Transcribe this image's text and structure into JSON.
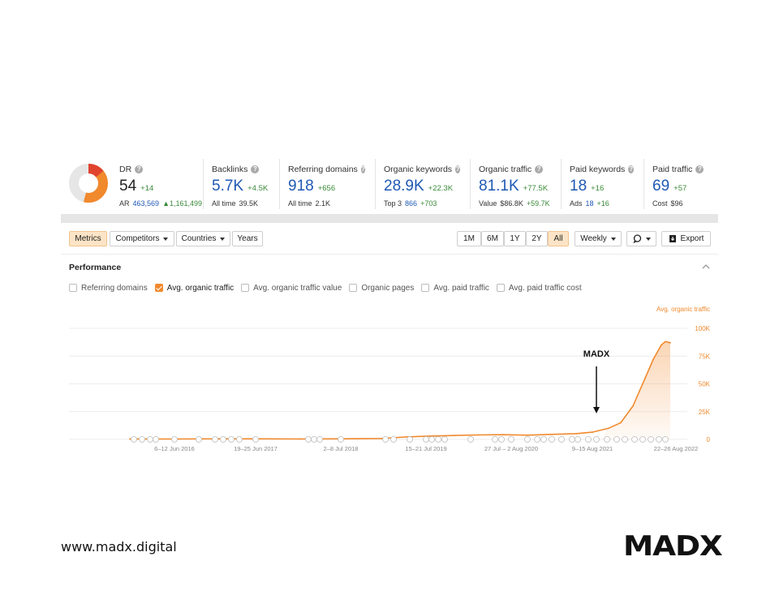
{
  "metrics": {
    "dr": {
      "label": "DR",
      "value": "54",
      "delta": "+14",
      "ar_label": "AR",
      "ar_value": "463,569",
      "ar_change": "▲1,161,499",
      "gauge_fraction": 0.54,
      "gauge_color": "#f1892d",
      "gauge_color_top": "#e0442f"
    },
    "backlinks": {
      "label": "Backlinks",
      "value": "5.7K",
      "delta": "+4.5K",
      "sub_label": "All time",
      "sub_value": "39.5K"
    },
    "referring_domains": {
      "label": "Referring domains",
      "value": "918",
      "delta": "+656",
      "sub_label": "All time",
      "sub_value": "2.1K"
    },
    "organic_keywords": {
      "label": "Organic keywords",
      "value": "28.9K",
      "delta": "+22.3K",
      "sub_label": "Top 3",
      "sub_value": "866",
      "sub_delta": "+703"
    },
    "organic_traffic": {
      "label": "Organic traffic",
      "value": "81.1K",
      "delta": "+77.5K",
      "sub_label": "Value",
      "sub_value": "$86.8K",
      "sub_delta": "+59.7K"
    },
    "paid_keywords": {
      "label": "Paid keywords",
      "value": "18",
      "delta": "+16",
      "sub_label": "Ads",
      "sub_value": "18",
      "sub_delta": "+16"
    },
    "paid_traffic": {
      "label": "Paid traffic",
      "value": "69",
      "delta": "+57",
      "sub_label": "Cost",
      "sub_value": "$96"
    }
  },
  "toolbar": {
    "tabs": [
      "Metrics",
      "Competitors",
      "Countries",
      "Years"
    ],
    "active_tab": "Metrics",
    "ranges": [
      "1M",
      "6M",
      "1Y",
      "2Y",
      "All"
    ],
    "active_range": "All",
    "interval": "Weekly",
    "comment_icon": "comment-icon",
    "export_label": "Export",
    "export_icon": "export-icon"
  },
  "performance": {
    "title": "Performance",
    "checkboxes": [
      {
        "label": "Referring domains",
        "checked": false
      },
      {
        "label": "Avg. organic traffic",
        "checked": true
      },
      {
        "label": "Avg. organic traffic value",
        "checked": false
      },
      {
        "label": "Organic pages",
        "checked": false
      },
      {
        "label": "Avg. paid traffic",
        "checked": false
      },
      {
        "label": "Avg. paid traffic cost",
        "checked": false
      }
    ]
  },
  "chart_data": {
    "type": "line",
    "series_label": "Avg. organic traffic",
    "y_ticks": [
      "100K",
      "75K",
      "50K",
      "25K",
      "0"
    ],
    "ylim": [
      0,
      100000
    ],
    "x_labels": [
      "6–12 Jun 2016",
      "19–25 Jun 2017",
      "2–8 Jul 2018",
      "15–21 Jul 2019",
      "27 Jul – 2 Aug 2020",
      "9–15 Aug 2021",
      "22–26 Aug 2022"
    ],
    "annotation": "MADX",
    "line_color": "#f1892d",
    "series": [
      {
        "name": "Avg. organic traffic",
        "points": [
          [
            2015.9,
            300
          ],
          [
            2016.5,
            400
          ],
          [
            2017.0,
            500
          ],
          [
            2017.5,
            500
          ],
          [
            2018.0,
            400
          ],
          [
            2018.5,
            500
          ],
          [
            2019.0,
            800
          ],
          [
            2019.3,
            2200
          ],
          [
            2019.6,
            3000
          ],
          [
            2019.9,
            3500
          ],
          [
            2020.2,
            4000
          ],
          [
            2020.5,
            4200
          ],
          [
            2020.8,
            3800
          ],
          [
            2021.1,
            4500
          ],
          [
            2021.4,
            5200
          ],
          [
            2021.6,
            6500
          ],
          [
            2021.8,
            10000
          ],
          [
            2021.95,
            15000
          ],
          [
            2022.1,
            30000
          ],
          [
            2022.25,
            55000
          ],
          [
            2022.35,
            72000
          ],
          [
            2022.45,
            85000
          ],
          [
            2022.5,
            88000
          ],
          [
            2022.56,
            87000
          ]
        ]
      }
    ]
  },
  "footer": {
    "website": "www.madx.digital",
    "logo_text": "MADX"
  }
}
